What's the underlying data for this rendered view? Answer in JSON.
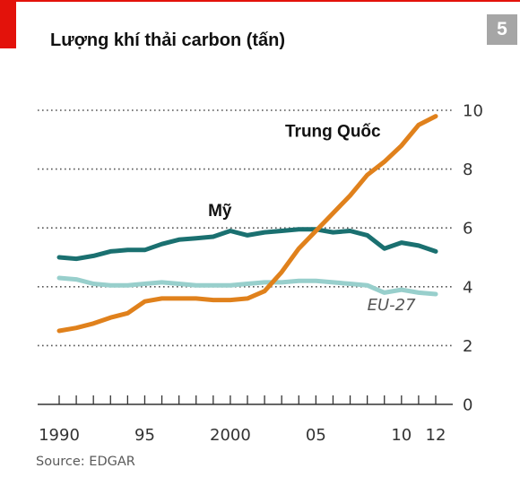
{
  "badge": "5",
  "title": "Lượng khí thải carbon (tấn)",
  "source": "Source: EDGAR",
  "chart_data": {
    "type": "line",
    "title": "Lượng khí thải carbon (tấn)",
    "xlabel": "",
    "ylabel": "",
    "xlim": [
      1990,
      2012
    ],
    "ylim": [
      0,
      10
    ],
    "grid": true,
    "x_ticks": [
      {
        "value": 1990,
        "label": "1990"
      },
      {
        "value": 1995,
        "label": "95"
      },
      {
        "value": 2000,
        "label": "2000"
      },
      {
        "value": 2005,
        "label": "05"
      },
      {
        "value": 2010,
        "label": "10"
      },
      {
        "value": 2012,
        "label": "12"
      }
    ],
    "y_ticks": [
      {
        "value": 0,
        "label": "0"
      },
      {
        "value": 2,
        "label": "2"
      },
      {
        "value": 4,
        "label": "4"
      },
      {
        "value": 6,
        "label": "6"
      },
      {
        "value": 8,
        "label": "8"
      },
      {
        "value": 10,
        "label": "10"
      }
    ],
    "x": [
      1990,
      1991,
      1992,
      1993,
      1994,
      1995,
      1996,
      1997,
      1998,
      1999,
      2000,
      2001,
      2002,
      2003,
      2004,
      2005,
      2006,
      2007,
      2008,
      2009,
      2010,
      2011,
      2012
    ],
    "series": [
      {
        "name": "Mỹ",
        "color": "#1a7070",
        "label_style": "bold",
        "label_anchor": {
          "x": 1998.7,
          "y": 6.4
        },
        "values": [
          5.0,
          4.95,
          5.05,
          5.2,
          5.25,
          5.25,
          5.45,
          5.6,
          5.65,
          5.7,
          5.9,
          5.75,
          5.85,
          5.9,
          5.95,
          5.95,
          5.85,
          5.9,
          5.75,
          5.3,
          5.5,
          5.4,
          5.2
        ]
      },
      {
        "name": "EU-27",
        "color": "#98cfcc",
        "label_style": "italic",
        "label_anchor": {
          "x": 2008.0,
          "y": 3.2
        },
        "values": [
          4.3,
          4.25,
          4.1,
          4.05,
          4.05,
          4.1,
          4.15,
          4.1,
          4.05,
          4.05,
          4.05,
          4.1,
          4.15,
          4.15,
          4.2,
          4.2,
          4.15,
          4.1,
          4.05,
          3.8,
          3.9,
          3.8,
          3.75
        ]
      },
      {
        "name": "Trung Quốc",
        "color": "#e0811c",
        "label_style": "bold",
        "label_anchor": {
          "x": 2003.2,
          "y": 9.1
        },
        "values": [
          2.5,
          2.6,
          2.75,
          2.95,
          3.1,
          3.5,
          3.6,
          3.6,
          3.6,
          3.55,
          3.55,
          3.6,
          3.85,
          4.5,
          5.3,
          5.9,
          6.5,
          7.1,
          7.8,
          8.25,
          8.8,
          9.5,
          9.8
        ]
      }
    ]
  }
}
